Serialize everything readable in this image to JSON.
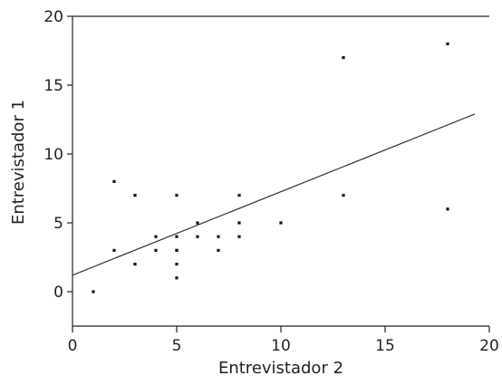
{
  "chart_data": {
    "type": "scatter",
    "xlabel": "Entrevistador 2",
    "ylabel": "Entrevistador 1",
    "xlim": [
      0,
      20
    ],
    "ylim": [
      -2.5,
      20
    ],
    "x_ticks": [
      0,
      5,
      10,
      15,
      20
    ],
    "y_ticks": [
      0,
      5,
      10,
      15,
      20
    ],
    "grid": false,
    "series": [
      {
        "points": [
          {
            "x": 1,
            "y": 0
          },
          {
            "x": 2,
            "y": 8
          },
          {
            "x": 2,
            "y": 3
          },
          {
            "x": 3,
            "y": 7
          },
          {
            "x": 3,
            "y": 2
          },
          {
            "x": 4,
            "y": 4
          },
          {
            "x": 4,
            "y": 3
          },
          {
            "x": 5,
            "y": 7
          },
          {
            "x": 5,
            "y": 4
          },
          {
            "x": 5,
            "y": 3
          },
          {
            "x": 5,
            "y": 3
          },
          {
            "x": 5,
            "y": 2
          },
          {
            "x": 5,
            "y": 1
          },
          {
            "x": 6,
            "y": 5
          },
          {
            "x": 6,
            "y": 4
          },
          {
            "x": 7,
            "y": 4
          },
          {
            "x": 7,
            "y": 3
          },
          {
            "x": 8,
            "y": 7
          },
          {
            "x": 8,
            "y": 5
          },
          {
            "x": 8,
            "y": 4
          },
          {
            "x": 10,
            "y": 5
          },
          {
            "x": 13,
            "y": 17
          },
          {
            "x": 13,
            "y": 7
          },
          {
            "x": 18,
            "y": 18
          },
          {
            "x": 18,
            "y": 6
          }
        ]
      }
    ],
    "fit_line": {
      "x": [
        0,
        19.3
      ],
      "y": [
        1.2,
        12.9
      ]
    }
  }
}
